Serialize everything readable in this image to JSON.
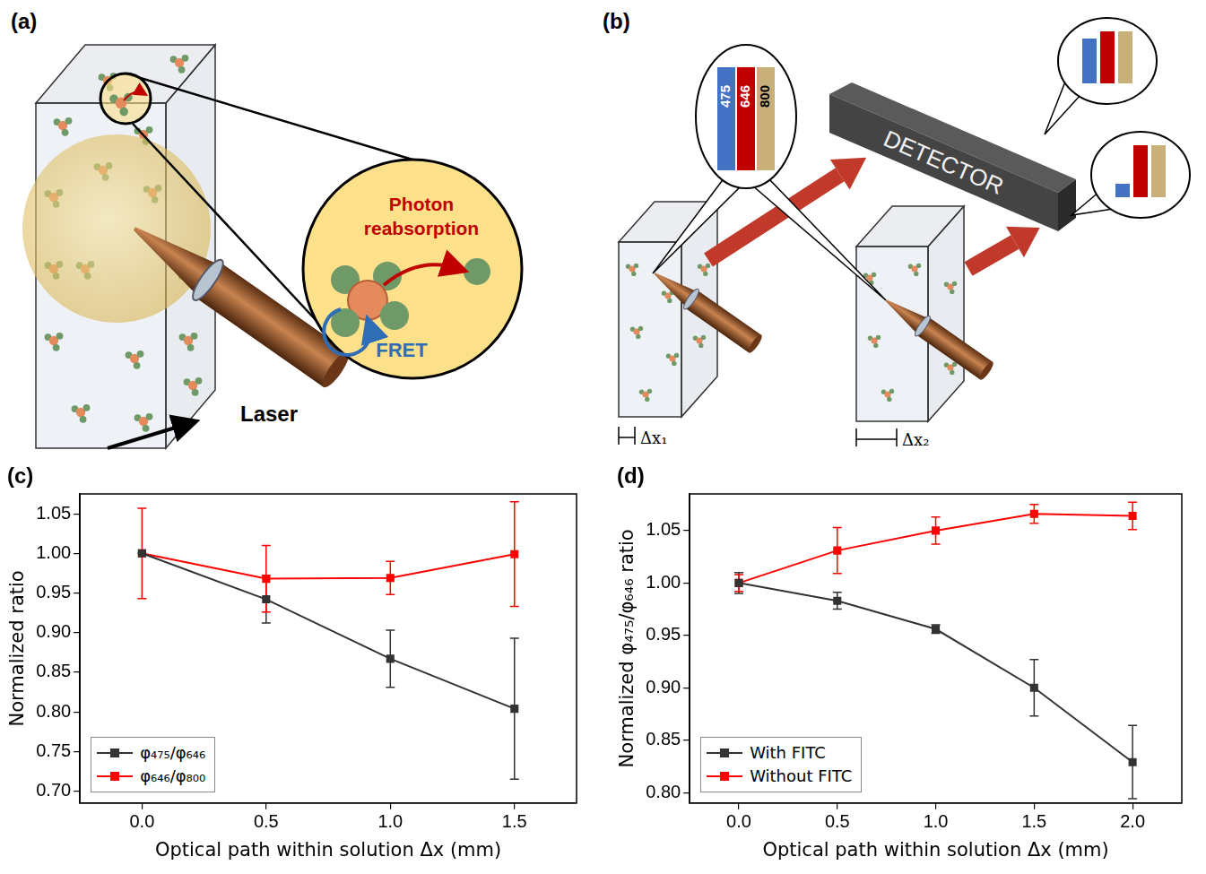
{
  "panel_a": {
    "letter": "(a)",
    "reabsorption": "Photon reabsorption",
    "fret": "FRET",
    "laser": "Laser"
  },
  "panel_b": {
    "letter": "(b)",
    "detector": "DETECTOR",
    "wavelengths": [
      "475",
      "646",
      "800"
    ],
    "path_1": "Δx₁",
    "path_2": "Δx₂"
  },
  "chart_data": [
    {
      "type": "line",
      "title": "(c)",
      "x_label": "Optical path within solution Δx (mm)",
      "y_label": "Normalized ratio",
      "x": [
        0,
        0.5,
        1.0,
        1.5
      ],
      "series": [
        {
          "name": "φ₄₇₅/φ₆₄₆",
          "color": "#333333",
          "marker": "square",
          "line_style": "solid",
          "values": [
            1.0,
            0.942,
            0.867,
            0.804
          ],
          "errors": [
            0.0,
            0.03,
            0.036,
            0.089
          ]
        },
        {
          "name": "φ₆₄₆/φ₈₀₀",
          "color": "#ff0000",
          "marker": "square",
          "line_style": "solid",
          "values": [
            1.0,
            0.968,
            0.969,
            0.999
          ],
          "errors": [
            0.057,
            0.042,
            0.021,
            0.066
          ]
        }
      ],
      "xlim": [
        -0.25,
        1.75
      ],
      "xticks": [
        {
          "value": 0,
          "label": "0.0"
        },
        0.5,
        {
          "value": 1,
          "label": "1.0"
        },
        1.5
      ],
      "ylim": [
        0.685,
        1.075
      ],
      "yticks": [
        {
          "value": 0.7,
          "label": "0.70"
        },
        0.75,
        {
          "value": 0.8,
          "label": "0.80"
        },
        0.85,
        {
          "value": 0.9,
          "label": "0.90"
        },
        0.95,
        {
          "value": 1,
          "label": "1.00"
        },
        1.05
      ],
      "grid": false,
      "legend": "lower left"
    },
    {
      "type": "line",
      "title": "(d)",
      "x_label": "Optical path within solution Δx (mm)",
      "y_label": "Normalized φ₄₇₅/φ₆₄₆ ratio",
      "x": [
        0,
        0.5,
        1.0,
        1.5,
        2.0
      ],
      "series": [
        {
          "name": "With FITC",
          "color": "#333333",
          "marker": "square",
          "line_style": "solid",
          "values": [
            1.0,
            0.983,
            0.956,
            0.9,
            0.829
          ],
          "errors": [
            0.01,
            0.008,
            0.004,
            0.027,
            0.035
          ]
        },
        {
          "name": "Without FITC",
          "color": "#ff0000",
          "marker": "square",
          "line_style": "solid",
          "values": [
            1.0,
            1.031,
            1.05,
            1.066,
            1.064
          ],
          "errors": [
            0.008,
            0.022,
            0.013,
            0.009,
            0.013
          ]
        }
      ],
      "xlim": [
        -0.25,
        2.25
      ],
      "xticks": [
        {
          "value": 0,
          "label": "0.0"
        },
        0.5,
        {
          "value": 1,
          "label": "1.0"
        },
        1.5,
        {
          "value": 2,
          "label": "2.0"
        }
      ],
      "ylim": [
        0.79,
        1.085
      ],
      "yticks": [
        {
          "value": 0.8,
          "label": "0.80"
        },
        0.85,
        {
          "value": 0.9,
          "label": "0.90"
        },
        0.95,
        {
          "value": 1,
          "label": "1.00"
        },
        1.05
      ],
      "grid": false,
      "legend": "lower left"
    }
  ]
}
